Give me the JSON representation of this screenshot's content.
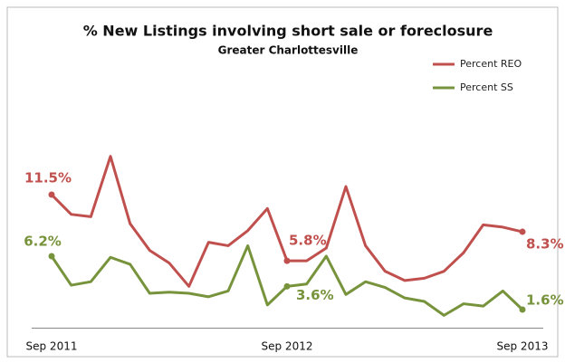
{
  "chart_data": {
    "type": "line",
    "title": "% New Listings involving short sale or foreclosure",
    "subtitle": "Greater Charlottesville",
    "categories": [
      "Sep 2011",
      null,
      null,
      null,
      null,
      null,
      null,
      null,
      null,
      null,
      null,
      null,
      "Sep 2012",
      null,
      null,
      null,
      null,
      null,
      null,
      null,
      null,
      null,
      null,
      null,
      "Sep 2013"
    ],
    "series": [
      {
        "name": "Percent REO",
        "color": "#c0504d",
        "values": [
          11.5,
          9.8,
          9.6,
          14.8,
          9.0,
          6.7,
          5.6,
          3.6,
          7.4,
          7.1,
          8.4,
          10.3,
          5.8,
          5.8,
          6.9,
          12.2,
          7.1,
          4.9,
          4.1,
          4.3,
          4.9,
          6.5,
          8.9,
          8.7,
          8.3
        ],
        "value_labels": [
          "11.5%",
          null,
          null,
          null,
          null,
          null,
          null,
          null,
          null,
          null,
          null,
          null,
          "5.8%",
          null,
          null,
          null,
          null,
          null,
          null,
          null,
          null,
          null,
          null,
          null,
          "8.3%"
        ]
      },
      {
        "name": "Percent SS",
        "color": "#77933c",
        "values": [
          6.2,
          3.7,
          4.0,
          6.1,
          5.5,
          3.0,
          3.1,
          3.0,
          2.7,
          3.2,
          7.1,
          2.0,
          3.6,
          3.8,
          6.2,
          2.9,
          4.0,
          3.5,
          2.6,
          2.3,
          1.1,
          2.1,
          1.9,
          3.2,
          1.6
        ],
        "value_labels": [
          "6.2%",
          null,
          null,
          null,
          null,
          null,
          null,
          null,
          null,
          null,
          null,
          null,
          "3.6%",
          null,
          null,
          null,
          null,
          null,
          null,
          null,
          null,
          null,
          null,
          null,
          "1.6%"
        ]
      }
    ],
    "ylim": [
      0,
      16
    ],
    "legend": "top-right"
  }
}
